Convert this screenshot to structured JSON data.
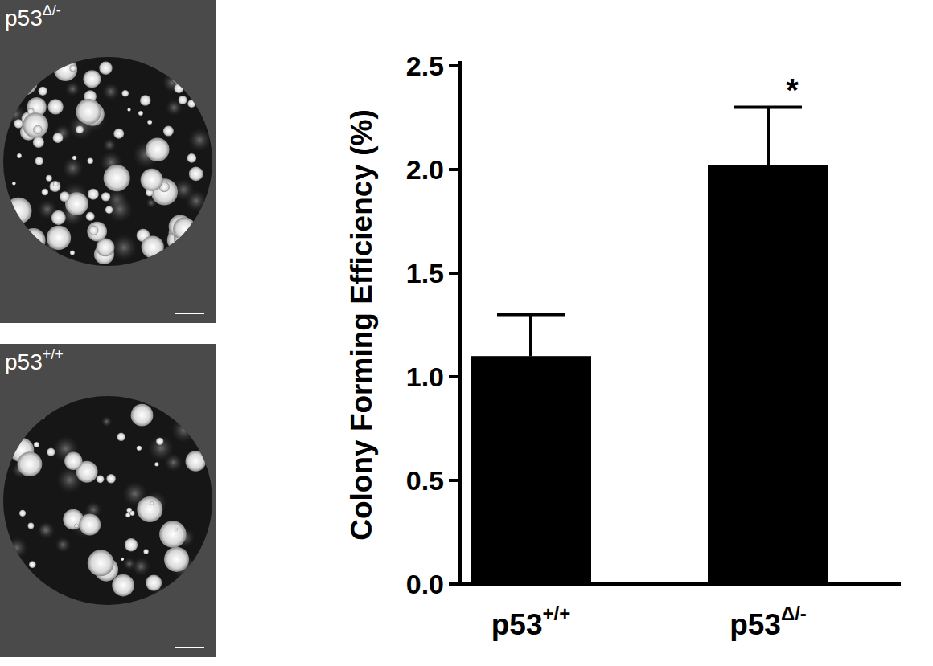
{
  "chart_data": {
    "type": "bar",
    "categories": [
      "p53+/+",
      "p53Δ/-"
    ],
    "values": [
      1.1,
      2.02
    ],
    "errors": [
      0.2,
      0.28
    ],
    "color": "#000000",
    "y_label": "Colony Forming Efficiency (%)",
    "ylim": [
      0,
      2.5
    ],
    "yticks": [
      {
        "value": 0,
        "label": "0.0"
      },
      0.5,
      {
        "value": 1,
        "label": "1.0"
      },
      1.5,
      {
        "value": 2,
        "label": "2.0"
      },
      2.5
    ],
    "annotations": [
      {
        "text": "*",
        "category": "p53Δ/-"
      }
    ],
    "panel_labels": [
      "p53Δ/-",
      "p53+/+"
    ]
  }
}
